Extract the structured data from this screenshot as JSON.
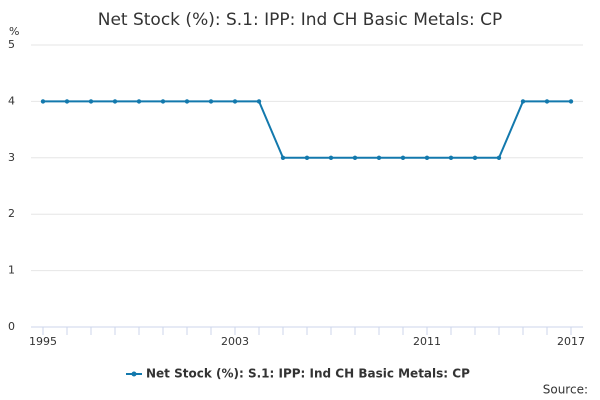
{
  "chart_data": {
    "type": "line",
    "title": "Net Stock (%): S.1: IPP: Ind CH Basic Metals: CP",
    "y_label": "%",
    "source": "Source:",
    "x": [
      1995,
      1996,
      1997,
      1998,
      1999,
      2000,
      2001,
      2002,
      2003,
      2004,
      2005,
      2006,
      2007,
      2008,
      2009,
      2010,
      2011,
      2012,
      2013,
      2014,
      2015,
      2016,
      2017
    ],
    "series": [
      {
        "name": "Net Stock (%): S.1: IPP: Ind CH Basic Metals: CP",
        "color": "#1379ad",
        "values": [
          4,
          4,
          4,
          4,
          4,
          4,
          4,
          4,
          4,
          4,
          3,
          3,
          3,
          3,
          3,
          3,
          3,
          3,
          3,
          3,
          4,
          4,
          4
        ]
      }
    ],
    "xlim": [
      1994.5,
      2017.5
    ],
    "xticks": [
      1995,
      2003,
      2011,
      2017
    ],
    "ylim": [
      0,
      5
    ],
    "yticks": [
      0,
      1,
      2,
      3,
      4,
      5
    ],
    "grid": true
  }
}
